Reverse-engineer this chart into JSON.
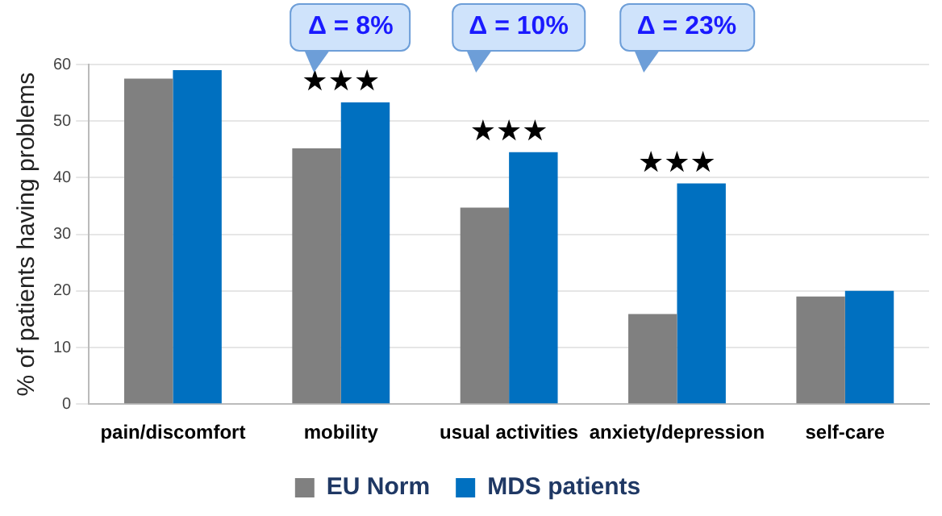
{
  "chart_data": {
    "type": "bar",
    "ylabel": "% of patients having problems",
    "categories": [
      "pain/discomfort",
      "mobility",
      "usual activities",
      "anxiety/depression",
      "self-care"
    ],
    "series": [
      {
        "name": "EU Norm",
        "color": "#808080",
        "values": [
          57.5,
          45.2,
          34.7,
          15.9,
          19
        ]
      },
      {
        "name": "MDS patients",
        "color": "#0070c0",
        "values": [
          59,
          53.3,
          44.5,
          39,
          20
        ]
      }
    ],
    "ylim": [
      0,
      60
    ],
    "yticks": [
      0,
      10,
      20,
      30,
      40,
      50,
      60
    ],
    "grid": "y",
    "legend": "bottom",
    "annotations": [
      "Δ = 8%",
      "Δ = 10%",
      "Δ = 23%",
      "★★★",
      "★★★",
      "★★★"
    ]
  }
}
